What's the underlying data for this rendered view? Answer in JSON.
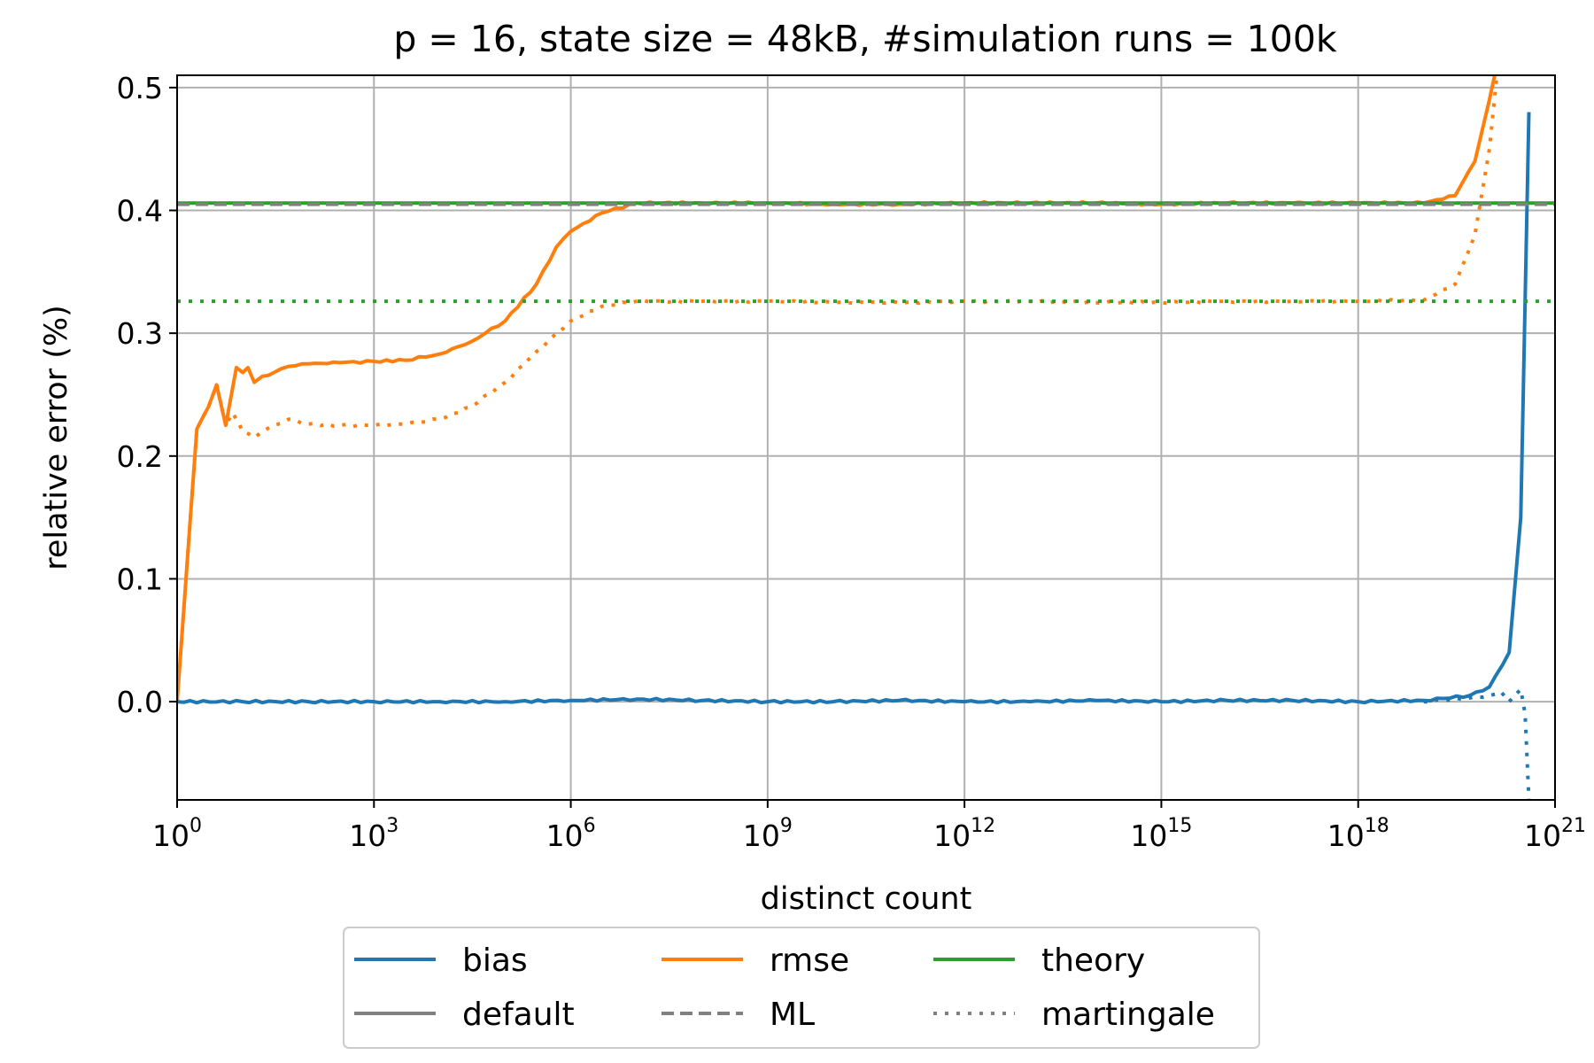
{
  "chart_data": {
    "type": "line",
    "title": "p = 16, state size = 48kB, #simulation runs = 100k",
    "xlabel": "distinct count",
    "ylabel": "relative error (%)",
    "x_scale": "log",
    "xlim": [
      1,
      1e+21
    ],
    "ylim": [
      -0.08,
      0.51
    ],
    "grid": true,
    "x_ticks": [
      {
        "base": "10",
        "exp": "0",
        "value": 1
      },
      {
        "base": "10",
        "exp": "3",
        "value": 1000.0
      },
      {
        "base": "10",
        "exp": "6",
        "value": 1000000.0
      },
      {
        "base": "10",
        "exp": "9",
        "value": 1000000000.0
      },
      {
        "base": "10",
        "exp": "12",
        "value": 1000000000000.0
      },
      {
        "base": "10",
        "exp": "15",
        "value": 1000000000000000.0
      },
      {
        "base": "10",
        "exp": "18",
        "value": 1e+18
      },
      {
        "base": "10",
        "exp": "21",
        "value": 1e+21
      }
    ],
    "y_ticks": [
      {
        "label": "0.0",
        "value": 0.0
      },
      {
        "label": "0.1",
        "value": 0.1
      },
      {
        "label": "0.2",
        "value": 0.2
      },
      {
        "label": "0.3",
        "value": 0.3
      },
      {
        "label": "0.4",
        "value": 0.4
      },
      {
        "label": "0.5",
        "value": 0.5
      }
    ],
    "colors": {
      "bias": "#1f77b4",
      "rmse": "#ff7f0e",
      "theory": "#2ca02c",
      "style_key": "#808080"
    },
    "series": [
      {
        "metric": "rmse",
        "estimator": "default",
        "color": "#ff7f0e",
        "dash": "solid",
        "points": [
          [
            1,
            0.0
          ],
          [
            2,
            0.222
          ],
          [
            3,
            0.24
          ],
          [
            4,
            0.258
          ],
          [
            5.5,
            0.225
          ],
          [
            7,
            0.255
          ],
          [
            8,
            0.272
          ],
          [
            10,
            0.268
          ],
          [
            12,
            0.272
          ],
          [
            15,
            0.26
          ],
          [
            20,
            0.265
          ],
          [
            30,
            0.268
          ],
          [
            50,
            0.273
          ],
          [
            100,
            0.275
          ],
          [
            300,
            0.276
          ],
          [
            1000.0,
            0.277
          ],
          [
            3000.0,
            0.278
          ],
          [
            10000.0,
            0.283
          ],
          [
            30000.0,
            0.293
          ],
          [
            100000.0,
            0.31
          ],
          [
            300000.0,
            0.34
          ],
          [
            600000.0,
            0.37
          ],
          [
            1000000.0,
            0.383
          ],
          [
            3000000.0,
            0.398
          ],
          [
            10000000.0,
            0.406
          ],
          [
            100000000.0,
            0.406
          ],
          [
            1000000000.0,
            0.406
          ],
          [
            10000000000.0,
            0.405
          ],
          [
            100000000000.0,
            0.405
          ],
          [
            1000000000000.0,
            0.406
          ],
          [
            10000000000000.0,
            0.406
          ],
          [
            100000000000000.0,
            0.406
          ],
          [
            1000000000000000.0,
            0.405
          ],
          [
            1e+16,
            0.406
          ],
          [
            1e+17,
            0.406
          ],
          [
            1e+18,
            0.406
          ],
          [
            1e+19,
            0.406
          ],
          [
            3e+19,
            0.412
          ],
          [
            6e+19,
            0.44
          ],
          [
            1e+20,
            0.49
          ],
          [
            1.2e+20,
            0.51
          ]
        ]
      },
      {
        "metric": "rmse",
        "estimator": "martingale",
        "color": "#ff7f0e",
        "dash": "dotted",
        "points": [
          [
            1,
            0.0
          ],
          [
            2,
            0.222
          ],
          [
            3,
            0.24
          ],
          [
            4,
            0.258
          ],
          [
            5.5,
            0.225
          ],
          [
            7,
            0.235
          ],
          [
            10,
            0.22
          ],
          [
            15,
            0.215
          ],
          [
            20,
            0.22
          ],
          [
            30,
            0.225
          ],
          [
            50,
            0.23
          ],
          [
            100,
            0.226
          ],
          [
            300,
            0.225
          ],
          [
            1000.0,
            0.225
          ],
          [
            3000.0,
            0.226
          ],
          [
            10000.0,
            0.23
          ],
          [
            30000.0,
            0.24
          ],
          [
            100000.0,
            0.26
          ],
          [
            300000.0,
            0.285
          ],
          [
            1000000.0,
            0.31
          ],
          [
            3000000.0,
            0.322
          ],
          [
            10000000.0,
            0.326
          ],
          [
            100000000.0,
            0.326
          ],
          [
            1000000000.0,
            0.326
          ],
          [
            10000000000.0,
            0.325
          ],
          [
            100000000000.0,
            0.325
          ],
          [
            1000000000000.0,
            0.326
          ],
          [
            10000000000000.0,
            0.326
          ],
          [
            100000000000000.0,
            0.325
          ],
          [
            1000000000000000.0,
            0.325
          ],
          [
            1e+16,
            0.326
          ],
          [
            1e+17,
            0.326
          ],
          [
            1e+18,
            0.326
          ],
          [
            1e+19,
            0.327
          ],
          [
            3e+19,
            0.34
          ],
          [
            6e+19,
            0.38
          ],
          [
            1e+20,
            0.45
          ],
          [
            1.3e+20,
            0.51
          ]
        ]
      },
      {
        "metric": "bias",
        "estimator": "default",
        "color": "#1f77b4",
        "dash": "solid",
        "points": [
          [
            1,
            0.0
          ],
          [
            10,
            0.0
          ],
          [
            100,
            0.0
          ],
          [
            1000.0,
            0.0
          ],
          [
            10000.0,
            0.0
          ],
          [
            100000.0,
            0.0
          ],
          [
            1000000.0,
            0.001
          ],
          [
            10000000.0,
            0.002
          ],
          [
            100000000.0,
            0.001
          ],
          [
            1000000000.0,
            0.0
          ],
          [
            10000000000.0,
            0.0
          ],
          [
            100000000000.0,
            0.001
          ],
          [
            1000000000000.0,
            0.0
          ],
          [
            10000000000000.0,
            0.0
          ],
          [
            100000000000000.0,
            0.001
          ],
          [
            1000000000000000.0,
            0.0
          ],
          [
            1e+16,
            0.001
          ],
          [
            1e+17,
            0.001
          ],
          [
            1e+18,
            0.0
          ],
          [
            1e+19,
            0.001
          ],
          [
            5e+19,
            0.005
          ],
          [
            1e+20,
            0.012
          ],
          [
            2e+20,
            0.04
          ],
          [
            3e+20,
            0.15
          ],
          [
            4e+20,
            0.48
          ]
        ]
      },
      {
        "metric": "bias",
        "estimator": "martingale",
        "color": "#1f77b4",
        "dash": "dotted",
        "points": [
          [
            1e+19,
            0.0
          ],
          [
            5e+19,
            0.003
          ],
          [
            1e+20,
            0.005
          ],
          [
            1.5e+20,
            0.008
          ],
          [
            2e+20,
            0.0
          ],
          [
            3e+20,
            0.01
          ],
          [
            3.5e+20,
            -0.01
          ],
          [
            4e+20,
            -0.08
          ]
        ]
      },
      {
        "metric": "theory",
        "estimator": "default",
        "color": "#2ca02c",
        "dash": "solid",
        "points": [
          [
            1,
            0.406
          ],
          [
            1e+21,
            0.406
          ]
        ]
      },
      {
        "metric": "theory",
        "estimator": "ML",
        "color": "#808080",
        "dash": "dashed",
        "points": [
          [
            1,
            0.405
          ],
          [
            1e+21,
            0.405
          ]
        ]
      },
      {
        "metric": "theory",
        "estimator": "martingale",
        "color": "#2ca02c",
        "dash": "dotted",
        "points": [
          [
            1,
            0.326
          ],
          [
            1e+21,
            0.326
          ]
        ]
      }
    ],
    "legend": {
      "placement": "bottom-center",
      "entries": [
        {
          "label": "bias",
          "color": "#1f77b4",
          "dash": "solid"
        },
        {
          "label": "rmse",
          "color": "#ff7f0e",
          "dash": "solid"
        },
        {
          "label": "theory",
          "color": "#2ca02c",
          "dash": "solid"
        },
        {
          "label": "default",
          "color": "#808080",
          "dash": "solid"
        },
        {
          "label": "ML",
          "color": "#808080",
          "dash": "dashed"
        },
        {
          "label": "martingale",
          "color": "#808080",
          "dash": "dotted"
        }
      ]
    }
  }
}
